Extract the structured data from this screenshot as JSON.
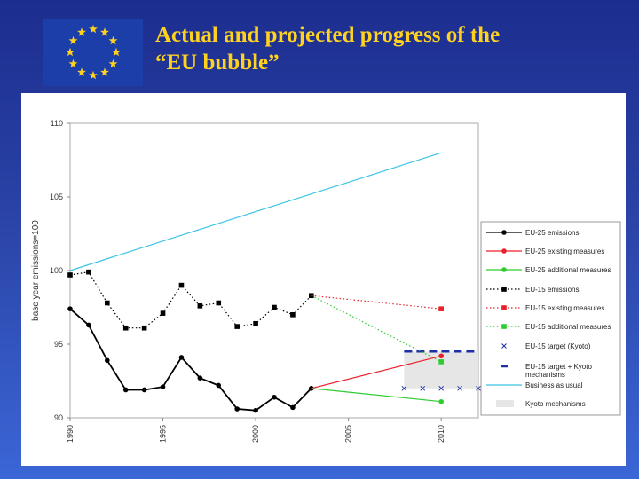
{
  "slide": {
    "title_line1": "Actual and projected progress of the",
    "title_line2": "“EU bubble”"
  },
  "colors": {
    "flag_blue": "#1c3ea8",
    "star_yellow": "#ffd21f",
    "eu25": "#000000",
    "existing": "#e8202a",
    "additional": "#2ecc2e",
    "kyoto": "#1f2fa8",
    "bau": "#3fc4e6",
    "kyoto_mech": "#e6e6e6"
  },
  "chart_data": {
    "type": "line",
    "title": "",
    "xlabel": "",
    "ylabel": "base year emissions=100",
    "xlim": [
      1990,
      2012
    ],
    "ylim": [
      90,
      110
    ],
    "x_ticks": [
      1990,
      1995,
      2000,
      2005,
      2010
    ],
    "y_ticks": [
      90,
      95,
      100,
      105,
      110
    ],
    "x_tick_labels": [
      "1990",
      "1995",
      "2000",
      "2005",
      "2010"
    ],
    "y_tick_labels": [
      "90",
      "95",
      "100",
      "105",
      "110"
    ],
    "legend_position": "right",
    "series": [
      {
        "key": "eu25",
        "name": "EU-25 emissions",
        "color": "#000000",
        "line": "solid",
        "marker": "circle",
        "x": [
          1990,
          1991,
          1992,
          1993,
          1994,
          1995,
          1996,
          1997,
          1998,
          1999,
          2000,
          2001,
          2002,
          2003
        ],
        "y": [
          97.4,
          96.3,
          93.9,
          91.9,
          91.9,
          92.1,
          94.1,
          92.7,
          92.2,
          90.6,
          90.5,
          91.4,
          90.7,
          92.0
        ]
      },
      {
        "key": "eu25_existing",
        "name": "EU-25 existing measures",
        "color": "#e8202a",
        "line": "solid",
        "marker": "circle",
        "x": [
          2003,
          2010
        ],
        "y": [
          92.0,
          94.2
        ]
      },
      {
        "key": "eu25_additional",
        "name": "EU-25 additional measures",
        "color": "#2ecc2e",
        "line": "solid",
        "marker": "circle",
        "x": [
          2003,
          2010
        ],
        "y": [
          92.0,
          91.1
        ]
      },
      {
        "key": "eu15",
        "name": "EU-15 emissions",
        "color": "#000000",
        "line": "dotted",
        "marker": "square",
        "x": [
          1990,
          1991,
          1992,
          1993,
          1994,
          1995,
          1996,
          1997,
          1998,
          1999,
          2000,
          2001,
          2002,
          2003
        ],
        "y": [
          99.7,
          99.9,
          97.8,
          96.1,
          96.1,
          97.1,
          99.0,
          97.6,
          97.8,
          96.2,
          96.4,
          97.5,
          97.0,
          98.3
        ]
      },
      {
        "key": "eu15_existing",
        "name": "EU-15 existing measures",
        "color": "#e8202a",
        "line": "dotted",
        "marker": "square",
        "x": [
          2003,
          2010
        ],
        "y": [
          98.3,
          97.4
        ]
      },
      {
        "key": "eu15_additional",
        "name": "EU-15 additional measures",
        "color": "#2ecc2e",
        "line": "dotted",
        "marker": "square",
        "x": [
          2003,
          2010
        ],
        "y": [
          98.3,
          93.8
        ]
      },
      {
        "key": "kyoto_target",
        "name": "EU-15 target (Kyoto)",
        "color": "#1f2fa8",
        "line": "none",
        "marker": "x",
        "x": [
          2008,
          2009,
          2010,
          2011,
          2012
        ],
        "y": [
          92.0,
          92.0,
          92.0,
          92.0,
          92.0
        ]
      },
      {
        "key": "kyoto_plus",
        "name": "EU-15 target + Kyoto mechanisms",
        "color": "#1f2fa8",
        "line": "dashed",
        "marker": "none",
        "x": [
          2008,
          2012
        ],
        "y": [
          94.5,
          94.5
        ]
      },
      {
        "key": "bau",
        "name": "Business as usual",
        "color": "#3fc4e6",
        "line": "solid",
        "marker": "none",
        "x": [
          1990,
          2010
        ],
        "y": [
          100.0,
          108.0
        ]
      }
    ],
    "kyoto_mechanisms": {
      "name": "Kyoto mechanisms",
      "x_range": [
        2008,
        2012
      ],
      "y_range": [
        92.0,
        94.5
      ],
      "color": "#e6e6e6"
    }
  }
}
